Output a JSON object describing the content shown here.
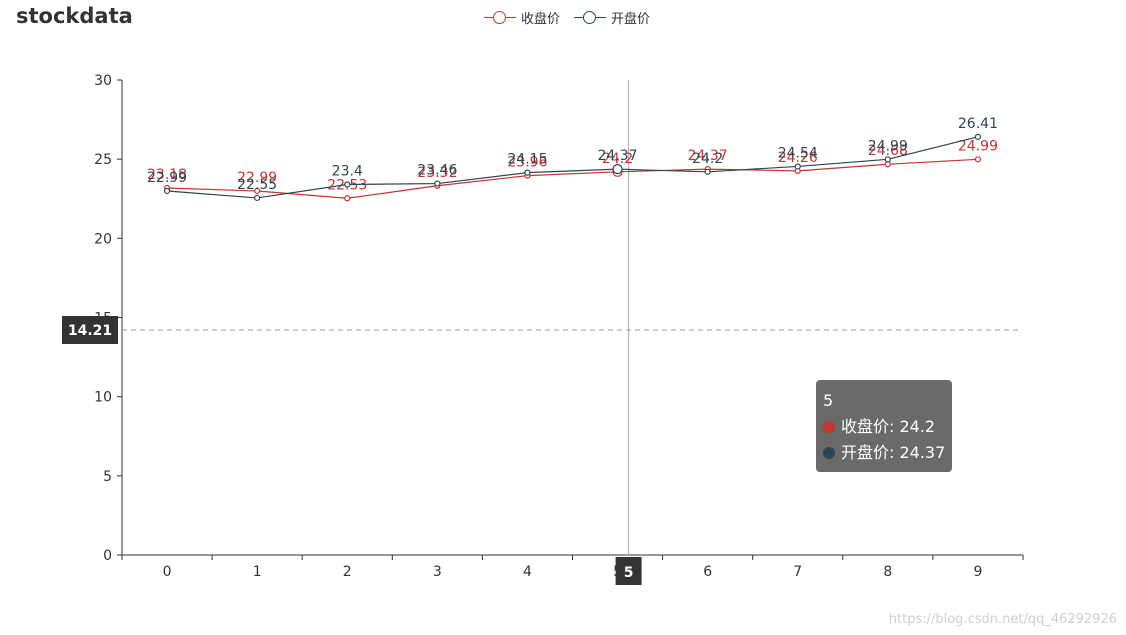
{
  "chart_data": {
    "type": "line",
    "title": "stockdata",
    "categories": [
      "0",
      "1",
      "2",
      "3",
      "4",
      "5",
      "6",
      "7",
      "8",
      "9"
    ],
    "series": [
      {
        "name": "收盘价",
        "color": "#c23531",
        "values": [
          23.18,
          22.99,
          22.53,
          23.32,
          23.96,
          24.2,
          24.37,
          24.26,
          24.68,
          24.99
        ]
      },
      {
        "name": "开盘价",
        "color": "#2f4554",
        "values": [
          22.99,
          22.55,
          23.4,
          23.46,
          24.15,
          24.37,
          24.2,
          24.54,
          24.99,
          26.41
        ]
      }
    ],
    "yticks": [
      0,
      5,
      10,
      15,
      20,
      25,
      30
    ],
    "ylim": [
      0,
      30
    ],
    "legend_position": "top-center",
    "grid": false
  },
  "axis_pointer": {
    "x_label": "5",
    "y_value": 14.21,
    "y_label": "14.21"
  },
  "tooltip": {
    "title": "5",
    "rows": [
      {
        "text": "收盘价: 24.2",
        "color": "#c23531"
      },
      {
        "text": "开盘价: 24.37",
        "color": "#2f4554"
      }
    ]
  },
  "watermark": "https://blog.csdn.net/qq_46292926"
}
